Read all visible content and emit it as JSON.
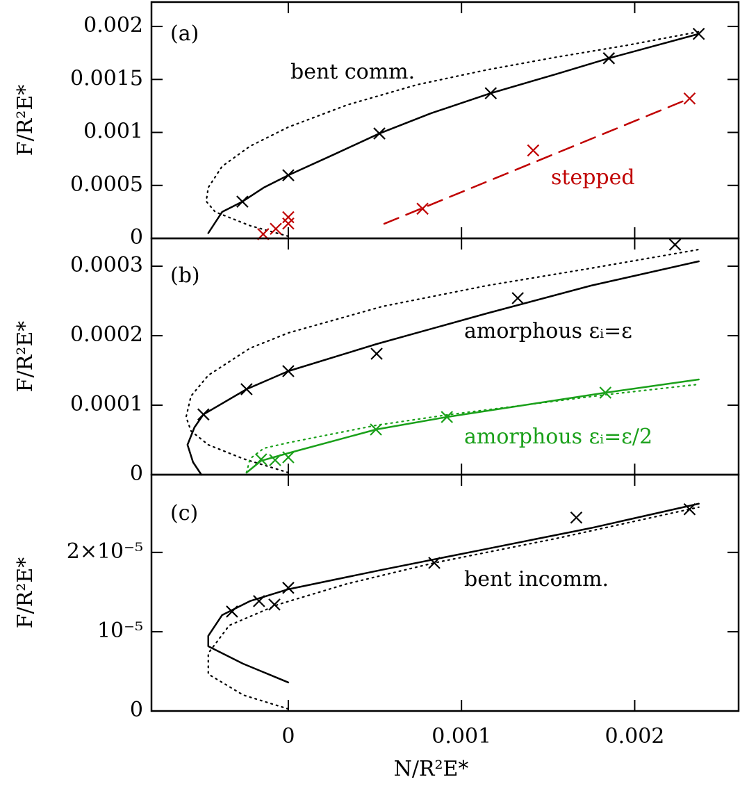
{
  "chart_data": [
    {
      "type": "line",
      "ylabel": "F/R²E*",
      "xlim": [
        -0.00079,
        0.0026
      ],
      "ylim": [
        0,
        0.00223
      ],
      "xticks": [
        0,
        0.001,
        0.002
      ],
      "yticks": [
        0,
        0.0005,
        0.001,
        0.0015,
        0.002
      ],
      "annotations": [
        {
          "text": "(a)",
          "color": "#000000"
        },
        {
          "text": "bent comm.",
          "color": "#000000"
        },
        {
          "text": "stepped",
          "color": "#c00000"
        }
      ],
      "series": [
        {
          "style": "dotted",
          "color": "#000000",
          "x": [
            0,
            -0.000221,
            -0.000422,
            -0.000474,
            -0.000462,
            -0.000382,
            -0.000221,
            0,
            0.000341,
            0.000743,
            0.001145,
            0.001546,
            0.001948,
            0.00237
          ],
          "values": [
            2e-05,
            0.00012,
            0.00025,
            0.00035,
            0.00048,
            0.00068,
            0.00087,
            0.00105,
            0.00126,
            0.00145,
            0.00159,
            0.00171,
            0.00182,
            0.00195
          ]
        },
        {
          "style": "solid",
          "color": "#000000",
          "x": [
            -0.000462,
            -0.000382,
            -0.000265,
            -0.000141,
            0,
            0.000261,
            0.000526,
            0.000823,
            0.001169,
            0.001546,
            0.001851,
            0.00237
          ],
          "values": [
            5e-05,
            0.00025,
            0.000347,
            0.00048,
            0.000596,
            0.00079,
            0.00099,
            0.00118,
            0.00137,
            0.00155,
            0.0017,
            0.00193
          ]
        },
        {
          "style": "markers",
          "color": "#000000",
          "x": [
            -0.000265,
            0,
            0.000526,
            0.001169,
            0.001851,
            0.00237
          ],
          "values": [
            0.000347,
            0.000596,
            0.00099,
            0.00137,
            0.0017,
            0.00193
          ]
        },
        {
          "style": "dashed",
          "color": "#c00000",
          "x": [
            0.000554,
            0.002317
          ],
          "values": [
            0.000138,
            0.00132
          ]
        },
        {
          "style": "markers",
          "color": "#c00000",
          "x": [
            -0.000145,
            -7.2e-05,
            0,
            0,
            0.000775,
            0.001414,
            0.002317
          ],
          "values": [
            4e-05,
            9e-05,
            0.0002,
            0.00014,
            0.00028,
            0.00083,
            0.00132
          ]
        }
      ]
    },
    {
      "type": "line",
      "ylabel": "F/R²E*",
      "xlim": [
        -0.00079,
        0.0026
      ],
      "ylim": [
        0,
        0.00034
      ],
      "xticks": [
        0,
        0.001,
        0.002
      ],
      "yticks": [
        0,
        0.0001,
        0.0002,
        0.0003
      ],
      "annotations": [
        {
          "text": "(b)",
          "color": "#000000"
        },
        {
          "text": "amorphous εᵢ=ε",
          "color": "#000000"
        },
        {
          "text": "amorphous εᵢ=ε/2",
          "color": "#1aa01a"
        }
      ],
      "series": [
        {
          "style": "dotted",
          "color": "#000000",
          "x": [
            0,
            -0.000261,
            -0.000462,
            -0.000562,
            -0.00059,
            -0.000562,
            -0.000462,
            -0.000221,
            0,
            0.000542,
            0.001145,
            0.001747,
            0.00237
          ],
          "values": [
            3e-06,
            2.3e-05,
            4.3e-05,
            6.3e-05,
            8.3e-05,
            0.000113,
            0.000143,
            0.000182,
            0.000204,
            0.000242,
            0.000272,
            0.000297,
            0.000324
          ]
        },
        {
          "style": "solid",
          "color": "#000000",
          "x": [
            -0.000502,
            -0.00055,
            -0.000582,
            -0.000542,
            -0.00049,
            -0.000241,
            0,
            0.00051,
            0.001145,
            0.001747,
            0.00237
          ],
          "values": [
            0,
            1.8e-05,
            4.3e-05,
            6.8e-05,
            8.67e-05,
            0.000123,
            0.000149,
            0.000188,
            0.000232,
            0.000272,
            0.000307
          ]
        },
        {
          "style": "markers",
          "color": "#000000",
          "x": [
            -0.00049,
            -0.000241,
            0,
            0.00051,
            0.001325,
            0.002233
          ],
          "values": [
            8.67e-05,
            0.000123,
            0.000149,
            0.000174,
            0.000254,
            0.000331
          ]
        },
        {
          "style": "dotted",
          "color": "#1aa01a",
          "x": [
            -0.000241,
            -0.000221,
            -0.000141,
            0,
            0.000506,
            0.000916,
            0.001831,
            0.00237
          ],
          "values": [
            3e-06,
            2.3e-05,
            3.8e-05,
            4.6e-05,
            7.1e-05,
            8.6e-05,
            0.000115,
            0.00013
          ]
        },
        {
          "style": "solid",
          "color": "#1aa01a",
          "x": [
            -0.000241,
            -0.000157,
            0,
            0.000506,
            0.000916,
            0.001831,
            0.00237
          ],
          "values": [
            3e-06,
            2e-05,
            3.1e-05,
            6.5e-05,
            8.3e-05,
            0.000118,
            0.000137
          ]
        },
        {
          "style": "markers",
          "color": "#1aa01a",
          "x": [
            -0.000157,
            -7.6e-05,
            0,
            0.000506,
            0.000916,
            0.001831
          ],
          "values": [
            2.2e-05,
            2.1e-05,
            2.5e-05,
            6.5e-05,
            8.3e-05,
            0.000118
          ]
        }
      ]
    },
    {
      "type": "line",
      "ylabel": "F/R²E*",
      "xlabel": "N/R²E*",
      "xlim": [
        -0.00079,
        0.0026
      ],
      "ylim": [
        0,
        2.98e-05
      ],
      "xticks": [
        0,
        0.001,
        0.002
      ],
      "yticks": [
        0,
        {
          "value": 1e-05,
          "label": "10⁻⁵"
        },
        {
          "value": 2e-05,
          "label": "2×10⁻⁵"
        }
      ],
      "annotations": [
        {
          "text": "(c)",
          "color": "#000000"
        },
        {
          "text": "bent incomm.",
          "color": "#000000"
        }
      ],
      "series": [
        {
          "style": "dotted",
          "color": "#000000",
          "x": [
            0,
            -0.000261,
            -0.000462,
            -0.000462,
            -0.000341,
            -6e-05,
            0.000341,
            0.000843,
            0.001546,
            0.00237
          ],
          "values": [
            2.6e-07,
            2.02e-06,
            4.65e-06,
            7.28e-06,
            1.079e-05,
            1.342e-05,
            1.605e-05,
            1.868e-05,
            2.175e-05,
            2.57e-05
          ]
        },
        {
          "style": "solid",
          "color": "#000000",
          "x": [
            0,
            -0.000261,
            -0.000462,
            -0.000462,
            -0.000382,
            -0.000221,
            0,
            0.000542,
            0.001145,
            0.001747,
            0.00237
          ],
          "values": [
            3.6e-06,
            5.96e-06,
            8.16e-06,
            9.47e-06,
            1.21e-05,
            1.386e-05,
            1.535e-05,
            1.781e-05,
            2.044e-05,
            2.307e-05,
            2.614e-05
          ]
        },
        {
          "style": "markers",
          "color": "#000000",
          "x": [
            -0.000325,
            -0.000169,
            -8e-05,
            0,
            0.000843,
            0.001663,
            0.002317
          ],
          "values": [
            1.254e-05,
            1.386e-05,
            1.342e-05,
            1.553e-05,
            1.868e-05,
            2.439e-05,
            2.544e-05
          ]
        }
      ]
    }
  ]
}
